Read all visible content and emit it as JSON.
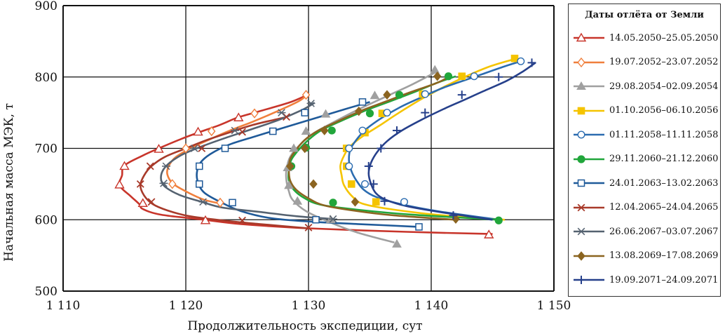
{
  "chart_data": {
    "type": "line",
    "title": "",
    "xlabel": "Продолжительность экспедиции, сут",
    "ylabel": "Начальная масса МЭК, т",
    "xlim": [
      1110,
      1150
    ],
    "ylim": [
      500,
      900
    ],
    "x_ticks": [
      1110,
      1120,
      1130,
      1140,
      1150
    ],
    "x_tick_labels": [
      "1 110",
      "1 120",
      "1 130",
      "1 140",
      "1 150"
    ],
    "y_ticks": [
      500,
      600,
      700,
      800,
      900
    ],
    "y_tick_labels": [
      "500",
      "600",
      "700",
      "800",
      "900"
    ],
    "grid": true,
    "legend": {
      "title": "Даты отлёта от Земли",
      "placement": "right"
    },
    "series": [
      {
        "name": "14.05.2050–25.05.2050",
        "color": "#c8352b",
        "marker": "triangle-open",
        "points": [
          [
            1145,
            580
          ],
          [
            1138,
            583
          ],
          [
            1130,
            588
          ],
          [
            1124.5,
            594
          ],
          [
            1121.5,
            600
          ],
          [
            1118,
            607
          ],
          [
            1116.5,
            615
          ],
          [
            1116.2,
            622
          ],
          [
            1115.5,
            633
          ],
          [
            1114.6,
            648
          ],
          [
            1114.8,
            662
          ],
          [
            1115,
            676
          ],
          [
            1116.5,
            690
          ],
          [
            1117.8,
            700
          ],
          [
            1119.6,
            713
          ],
          [
            1121,
            722
          ],
          [
            1122.8,
            733
          ],
          [
            1124.2,
            743
          ],
          [
            1126,
            752
          ],
          [
            1128.4,
            764
          ],
          [
            1129.8,
            774
          ]
        ],
        "marker_points": [
          [
            1144.7,
            579
          ],
          [
            1121.6,
            599
          ],
          [
            1116.5,
            623
          ],
          [
            1114.6,
            649
          ],
          [
            1115,
            675
          ],
          [
            1117.8,
            699
          ],
          [
            1121,
            723
          ],
          [
            1124.3,
            743
          ]
        ]
      },
      {
        "name": "19.07.2052–23.07.2052",
        "color": "#f07f3c",
        "marker": "diamond-open",
        "points": [
          [
            1123,
            622
          ],
          [
            1121.5,
            628
          ],
          [
            1120.2,
            638
          ],
          [
            1119,
            650
          ],
          [
            1118.5,
            663
          ],
          [
            1118.6,
            675
          ],
          [
            1119.2,
            688
          ],
          [
            1120.6,
            702
          ],
          [
            1122,
            713
          ],
          [
            1123.6,
            725
          ],
          [
            1125.4,
            737
          ],
          [
            1127.2,
            750
          ],
          [
            1129.2,
            766
          ],
          [
            1130,
            777
          ]
        ],
        "marker_points": [
          [
            1122.8,
            624
          ],
          [
            1118.9,
            650
          ],
          [
            1120,
            700
          ],
          [
            1122.1,
            724
          ],
          [
            1125.6,
            749
          ],
          [
            1129.8,
            775
          ]
        ]
      },
      {
        "name": "29.08.2054–02.09.2054",
        "color": "#a0a0a0",
        "marker": "triangle-filled",
        "points": [
          [
            1137,
            568
          ],
          [
            1134,
            582
          ],
          [
            1131.8,
            596
          ],
          [
            1129.8,
            612
          ],
          [
            1128.7,
            628
          ],
          [
            1128.4,
            640
          ],
          [
            1128.2,
            655
          ],
          [
            1128.2,
            670
          ],
          [
            1128.5,
            688
          ],
          [
            1129.3,
            705
          ],
          [
            1130.5,
            722
          ],
          [
            1132.2,
            738
          ],
          [
            1134,
            754
          ],
          [
            1136.5,
            774
          ],
          [
            1138.5,
            790
          ],
          [
            1140.5,
            808
          ]
        ],
        "marker_points": [
          [
            1137.2,
            566
          ],
          [
            1131.8,
            600
          ],
          [
            1129.1,
            626
          ],
          [
            1128.4,
            648
          ],
          [
            1128.3,
            673
          ],
          [
            1128.8,
            700
          ],
          [
            1129.8,
            724
          ],
          [
            1131.4,
            748
          ],
          [
            1135.4,
            774
          ],
          [
            1140.3,
            810
          ]
        ]
      },
      {
        "name": "01.10.2056–06.10.2056",
        "color": "#f5c400",
        "marker": "square-filled",
        "points": [
          [
            1146,
            600
          ],
          [
            1141,
            606
          ],
          [
            1137,
            614
          ],
          [
            1134.5,
            622
          ],
          [
            1133.6,
            632
          ],
          [
            1132.9,
            648
          ],
          [
            1132.7,
            662
          ],
          [
            1132.6,
            676
          ],
          [
            1132.9,
            690
          ],
          [
            1133.4,
            703
          ],
          [
            1134.5,
            718
          ],
          [
            1135.8,
            732
          ],
          [
            1137.2,
            748
          ],
          [
            1139.3,
            770
          ],
          [
            1141.5,
            790
          ],
          [
            1144.5,
            813
          ],
          [
            1147,
            826
          ]
        ],
        "marker_points": [
          [
            1135.5,
            625
          ],
          [
            1133.5,
            650
          ],
          [
            1133.1,
            675
          ],
          [
            1133.1,
            700
          ],
          [
            1134.6,
            722
          ],
          [
            1136,
            749
          ],
          [
            1139.3,
            776
          ],
          [
            1142.5,
            801
          ],
          [
            1146.8,
            826
          ]
        ]
      },
      {
        "name": "01.11.2058–11.11.2058",
        "color": "#2b6cb0",
        "marker": "circle-open",
        "points": [
          [
            1145.5,
            600
          ],
          [
            1140.5,
            612
          ],
          [
            1137.5,
            622
          ],
          [
            1135.5,
            632
          ],
          [
            1134.5,
            642
          ],
          [
            1133.9,
            655
          ],
          [
            1133.5,
            668
          ],
          [
            1133.3,
            683
          ],
          [
            1133.4,
            698
          ],
          [
            1133.9,
            712
          ],
          [
            1134.7,
            727
          ],
          [
            1136,
            743
          ],
          [
            1137.5,
            758
          ],
          [
            1139,
            770
          ],
          [
            1141,
            785
          ],
          [
            1143.5,
            800
          ],
          [
            1146,
            815
          ],
          [
            1147.5,
            823
          ]
        ],
        "marker_points": [
          [
            1137.8,
            625
          ],
          [
            1134.6,
            650
          ],
          [
            1133.3,
            675
          ],
          [
            1133.3,
            700
          ],
          [
            1134.4,
            725
          ],
          [
            1136.4,
            750
          ],
          [
            1139.5,
            776
          ],
          [
            1143.5,
            801
          ],
          [
            1147.3,
            822
          ]
        ]
      },
      {
        "name": "29.11.2060–21.12.2060",
        "color": "#21a63b",
        "marker": "circle-filled",
        "points": [
          [
            1145.5,
            600
          ],
          [
            1138.5,
            607
          ],
          [
            1134,
            614
          ],
          [
            1131,
            621
          ],
          [
            1129.7,
            630
          ],
          [
            1128.8,
            642
          ],
          [
            1128.4,
            655
          ],
          [
            1128.4,
            670
          ],
          [
            1128.6,
            684
          ],
          [
            1129.2,
            698
          ],
          [
            1130,
            712
          ],
          [
            1131,
            725
          ],
          [
            1132.6,
            738
          ],
          [
            1134.5,
            752
          ],
          [
            1136.5,
            765
          ],
          [
            1138.5,
            778
          ],
          [
            1140.5,
            792
          ],
          [
            1142,
            801
          ]
        ],
        "marker_points": [
          [
            1145.5,
            599
          ],
          [
            1132,
            624
          ],
          [
            1128.6,
            675
          ],
          [
            1129.8,
            701
          ],
          [
            1131.9,
            725
          ],
          [
            1135,
            749
          ],
          [
            1137.4,
            775
          ],
          [
            1141.4,
            801
          ]
        ]
      },
      {
        "name": "24.01.2063–13.02.2063",
        "color": "#1f5a99",
        "marker": "square-open",
        "points": [
          [
            1139,
            590
          ],
          [
            1134,
            594
          ],
          [
            1130.5,
            597
          ],
          [
            1127,
            602
          ],
          [
            1124.5,
            612
          ],
          [
            1122.8,
            625
          ],
          [
            1121.5,
            638
          ],
          [
            1121,
            652
          ],
          [
            1120.9,
            666
          ],
          [
            1121.2,
            680
          ],
          [
            1122,
            692
          ],
          [
            1123.5,
            705
          ],
          [
            1125.5,
            716
          ],
          [
            1127.8,
            728
          ],
          [
            1130.5,
            742
          ],
          [
            1133,
            755
          ],
          [
            1135,
            765
          ]
        ],
        "marker_points": [
          [
            1139,
            590
          ],
          [
            1130.6,
            600
          ],
          [
            1123.8,
            624
          ],
          [
            1121.1,
            650
          ],
          [
            1121.1,
            675
          ],
          [
            1123.2,
            700
          ],
          [
            1127.1,
            724
          ],
          [
            1129.7,
            750
          ],
          [
            1134.4,
            765
          ]
        ]
      },
      {
        "name": "12.04.2065–24.04.2065",
        "color": "#a83a2a",
        "marker": "x",
        "points": [
          [
            1130,
            588
          ],
          [
            1126,
            594
          ],
          [
            1123,
            599
          ],
          [
            1120.3,
            605
          ],
          [
            1118.5,
            613
          ],
          [
            1117.3,
            622
          ],
          [
            1116.6,
            634
          ],
          [
            1116.3,
            648
          ],
          [
            1116.6,
            662
          ],
          [
            1117.2,
            675
          ],
          [
            1118.3,
            688
          ],
          [
            1120,
            700
          ],
          [
            1121.6,
            711
          ],
          [
            1123.5,
            722
          ],
          [
            1125.5,
            733
          ],
          [
            1128,
            743
          ]
        ],
        "marker_points": [
          [
            1130,
            589
          ],
          [
            1124.6,
            599
          ],
          [
            1117.2,
            625
          ],
          [
            1116.3,
            650
          ],
          [
            1117.1,
            675
          ],
          [
            1121.3,
            700
          ],
          [
            1124.6,
            723
          ],
          [
            1128.2,
            744
          ]
        ]
      },
      {
        "name": "26.06.2067–03.07.2067",
        "color": "#556270",
        "marker": "asterisk",
        "points": [
          [
            1132,
            601
          ],
          [
            1129,
            605
          ],
          [
            1126,
            611
          ],
          [
            1123,
            617
          ],
          [
            1121.3,
            625
          ],
          [
            1119.6,
            634
          ],
          [
            1118.4,
            645
          ],
          [
            1118,
            655
          ],
          [
            1118.1,
            668
          ],
          [
            1118.7,
            680
          ],
          [
            1119.8,
            692
          ],
          [
            1121.5,
            704
          ],
          [
            1123.3,
            715
          ],
          [
            1125.4,
            727
          ],
          [
            1127.6,
            740
          ],
          [
            1129.5,
            754
          ],
          [
            1130.5,
            764
          ]
        ],
        "marker_points": [
          [
            1132,
            601
          ],
          [
            1121.4,
            625
          ],
          [
            1118.2,
            651
          ],
          [
            1118.4,
            675
          ],
          [
            1120.7,
            700
          ],
          [
            1124,
            725
          ],
          [
            1127.8,
            750
          ],
          [
            1130.2,
            763
          ]
        ]
      },
      {
        "name": "13.08.2069–17.08.2069",
        "color": "#8b6420",
        "marker": "diamond-filled",
        "points": [
          [
            1142,
            600
          ],
          [
            1137,
            606
          ],
          [
            1134,
            612
          ],
          [
            1131.3,
            620
          ],
          [
            1130,
            630
          ],
          [
            1129,
            642
          ],
          [
            1128.5,
            655
          ],
          [
            1128.4,
            670
          ],
          [
            1128.5,
            685
          ],
          [
            1129,
            698
          ],
          [
            1129.7,
            712
          ],
          [
            1130.8,
            725
          ],
          [
            1132.4,
            738
          ],
          [
            1134.2,
            752
          ],
          [
            1136.2,
            765
          ],
          [
            1138.2,
            778
          ],
          [
            1140.5,
            792
          ],
          [
            1141.5,
            801
          ]
        ],
        "marker_points": [
          [
            1142,
            601
          ],
          [
            1133.8,
            625
          ],
          [
            1130.4,
            650
          ],
          [
            1128.5,
            675
          ],
          [
            1129.7,
            700
          ],
          [
            1131.3,
            725
          ],
          [
            1134.1,
            752
          ],
          [
            1136.4,
            775
          ],
          [
            1140.5,
            801
          ]
        ]
      },
      {
        "name": "19.09.2071–24.09.2071",
        "color": "#26408b",
        "marker": "plus",
        "points": [
          [
            1145,
            600
          ],
          [
            1141,
            610
          ],
          [
            1138,
            619
          ],
          [
            1136.3,
            628
          ],
          [
            1135.5,
            637
          ],
          [
            1135.1,
            650
          ],
          [
            1134.9,
            665
          ],
          [
            1135.1,
            680
          ],
          [
            1135.6,
            695
          ],
          [
            1136.4,
            710
          ],
          [
            1137.6,
            725
          ],
          [
            1139.2,
            740
          ],
          [
            1141,
            755
          ],
          [
            1142.7,
            768
          ],
          [
            1144.5,
            782
          ],
          [
            1146.2,
            795
          ],
          [
            1147.5,
            808
          ],
          [
            1148.5,
            820
          ]
        ],
        "marker_points": [
          [
            1141.8,
            606
          ],
          [
            1136.2,
            626
          ],
          [
            1135.3,
            650
          ],
          [
            1134.9,
            675
          ],
          [
            1135.9,
            700
          ],
          [
            1137.2,
            725
          ],
          [
            1139.5,
            750
          ],
          [
            1142.5,
            775
          ],
          [
            1145.5,
            800
          ],
          [
            1148.2,
            820
          ]
        ]
      }
    ]
  }
}
